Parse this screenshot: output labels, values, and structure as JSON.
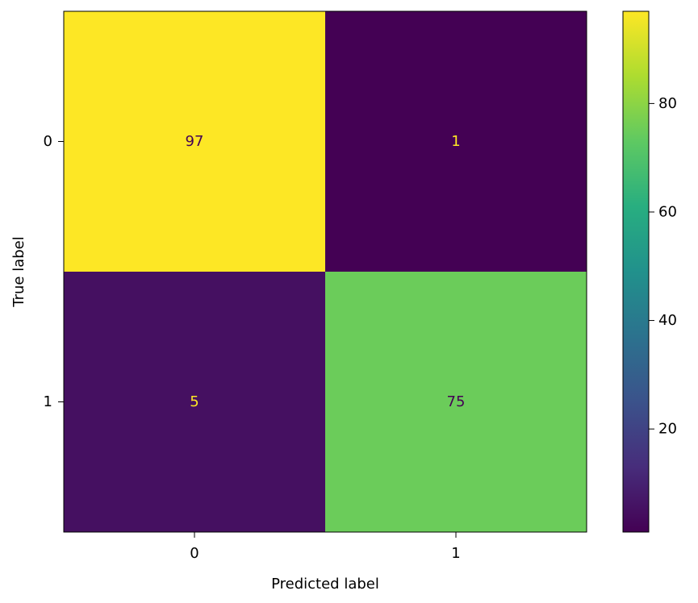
{
  "chart_data": {
    "type": "heatmap",
    "title": "",
    "xlabel": "Predicted label",
    "ylabel": "True label",
    "x_categories": [
      "0",
      "1"
    ],
    "y_categories": [
      "0",
      "1"
    ],
    "matrix": [
      [
        97,
        1
      ],
      [
        5,
        75
      ]
    ],
    "colormap": "viridis",
    "colorbar": {
      "range": [
        1,
        97
      ],
      "ticks": [
        20,
        40,
        60,
        80
      ],
      "tick_labels": [
        "20",
        "40",
        "60",
        "80"
      ]
    },
    "text_color_light_cells": "#440154",
    "text_color_dark_cells": "#fde725",
    "grid": false
  }
}
